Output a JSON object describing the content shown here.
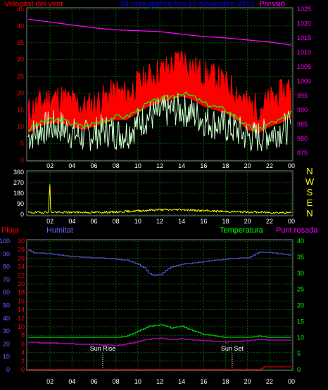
{
  "header": {
    "title": "24 hora gràfica fins 10 Novembre 2019",
    "left_label": "Velocitat del vent",
    "right_label": "Pressió"
  },
  "colors": {
    "wind": "#ff0000",
    "wind_avg": "#00ff00",
    "gust": "#ccffcc",
    "pressure": "#ff00ff",
    "direction": "#ffff00",
    "humidity": "#6666ff",
    "temperature": "#00ff00",
    "dewpoint": "#ff00ff",
    "rain": "#ff0000",
    "grid": "#006400",
    "frame": "#808080"
  },
  "chart_data": [
    {
      "type": "line",
      "title": "24 hora gràfica fins 10 Novembre 2019",
      "x_ticks": [
        "02",
        "04",
        "06",
        "08",
        "10",
        "12",
        "14",
        "16",
        "18",
        "20",
        "22",
        "00"
      ],
      "x_range_hours": [
        0,
        24
      ],
      "ylabel_left": "Velocitat del vent",
      "ylabel_right": "Pressió",
      "ylim_left": [
        0,
        45
      ],
      "ylim_right": [
        972.5,
        1025
      ],
      "y_ticks_left": [
        0,
        5,
        10,
        15,
        20,
        25,
        30,
        35,
        40,
        45
      ],
      "y_ticks_right": [
        975,
        980,
        985,
        990,
        995,
        1000,
        1005,
        1010,
        1015,
        1020,
        1025
      ],
      "grid": true,
      "series": [
        {
          "name": "Velocitat del vent",
          "color_key": "wind",
          "axis": "left",
          "x": [
            0,
            1,
            2,
            3,
            4,
            5,
            6,
            7,
            8,
            9,
            10,
            11,
            12,
            13,
            14,
            15,
            16,
            17,
            18,
            19,
            20,
            21,
            22,
            23,
            24
          ],
          "values": [
            12,
            14,
            16,
            16,
            15,
            13,
            14,
            16,
            18,
            17,
            20,
            22,
            24,
            25,
            28,
            25,
            23,
            22,
            20,
            18,
            14,
            13,
            15,
            17,
            20
          ]
        },
        {
          "name": "Mitjana",
          "color_key": "wind_avg",
          "axis": "left",
          "x": [
            0,
            1,
            2,
            3,
            4,
            5,
            6,
            7,
            8,
            9,
            10,
            11,
            12,
            13,
            14,
            15,
            16,
            17,
            18,
            19,
            20,
            21,
            22,
            23,
            24
          ],
          "values": [
            9,
            11,
            12,
            12,
            11,
            10,
            11,
            12,
            13,
            13,
            15,
            17,
            18,
            19,
            20,
            19,
            17,
            16,
            15,
            13,
            10,
            9,
            11,
            12,
            14
          ]
        },
        {
          "name": "Ràfega",
          "color_key": "gust",
          "axis": "left",
          "x": [
            0,
            1,
            2,
            3,
            4,
            5,
            6,
            7,
            8,
            9,
            10,
            11,
            12,
            13,
            14,
            15,
            16,
            17,
            18,
            19,
            20,
            21,
            22,
            23,
            24
          ],
          "values": [
            7,
            9,
            10,
            10,
            8,
            7,
            8,
            9,
            8,
            8,
            11,
            13,
            14,
            15,
            15,
            14,
            12,
            11,
            10,
            9,
            7,
            7,
            8,
            9,
            10
          ]
        },
        {
          "name": "Pressió",
          "color_key": "pressure",
          "axis": "right",
          "x": [
            0,
            2,
            4,
            6,
            8,
            10,
            12,
            14,
            16,
            18,
            20,
            22,
            24
          ],
          "values": [
            1021.5,
            1020.5,
            1019.5,
            1018.5,
            1017.8,
            1017.5,
            1017.2,
            1016.3,
            1015.5,
            1015,
            1014.3,
            1013.6,
            1012.5
          ]
        }
      ]
    },
    {
      "type": "line",
      "x_ticks": [
        "02",
        "04",
        "06",
        "08",
        "10",
        "12",
        "14",
        "16",
        "18",
        "20",
        "22",
        "00"
      ],
      "x_range_hours": [
        0,
        24
      ],
      "ylim": [
        0,
        360
      ],
      "y_ticks": [
        0,
        90,
        180,
        270,
        360
      ],
      "right_labels": [
        "N",
        "W",
        "S",
        "E",
        "N"
      ],
      "grid": true,
      "series": [
        {
          "name": "Direcció",
          "color_key": "direction",
          "x": [
            0,
            1,
            1.9,
            1.95,
            2.05,
            3,
            4,
            5,
            6,
            7,
            8,
            9,
            10,
            11,
            12,
            13,
            14,
            15,
            16,
            17,
            18,
            19,
            20,
            21,
            22,
            23,
            24
          ],
          "values": [
            15,
            16,
            20,
            360,
            20,
            15,
            18,
            17,
            16,
            18,
            20,
            25,
            30,
            35,
            40,
            38,
            42,
            35,
            30,
            28,
            25,
            22,
            20,
            18,
            16,
            15,
            14
          ]
        }
      ]
    },
    {
      "type": "line",
      "x_ticks": [
        "02",
        "04",
        "06",
        "08",
        "10",
        "12",
        "14",
        "16",
        "18",
        "20",
        "22",
        "00"
      ],
      "x_range_hours": [
        0,
        24
      ],
      "left_label": "Pluja",
      "second_label": "Humitat",
      "temperature_label": "Temperatura",
      "dewpoint_label": "Punt rosada",
      "ylim_rain": [
        0,
        30
      ],
      "y_ticks_rain": [
        0,
        2,
        4,
        6,
        8,
        10,
        12,
        14,
        16,
        18,
        20,
        22,
        24,
        26,
        28,
        30
      ],
      "ylim_humidity": [
        0,
        100
      ],
      "y_ticks_humidity": [
        0,
        10,
        20,
        30,
        40,
        50,
        60,
        70,
        80,
        90,
        100
      ],
      "ylim_temperature": [
        0,
        40
      ],
      "y_ticks_temperature": [
        0,
        5,
        10,
        15,
        20,
        25,
        30,
        35,
        40
      ],
      "annotations": [
        {
          "label": "Sun Rise",
          "hour": 6.8
        },
        {
          "label": "Sun Set",
          "hour": 18.6
        }
      ],
      "grid": true,
      "series": [
        {
          "name": "Humitat",
          "color_key": "humidity",
          "scale": "humidity",
          "x": [
            0,
            0.4,
            2,
            4,
            6,
            8,
            9,
            10,
            10.5,
            11,
            11.5,
            12,
            12.5,
            13,
            14,
            16,
            18,
            20,
            21,
            22,
            24
          ],
          "values": [
            93,
            91,
            90,
            88,
            87,
            86,
            85,
            82,
            79,
            75,
            73,
            74,
            77,
            80,
            82,
            84,
            86,
            87,
            91,
            91,
            89
          ]
        },
        {
          "name": "Temperatura",
          "color_key": "temperature",
          "scale": "temperature",
          "x": [
            0,
            2,
            4,
            6,
            8,
            9,
            10,
            11,
            12,
            13,
            14,
            15,
            16,
            17,
            18,
            19,
            20,
            21,
            22,
            23,
            24
          ],
          "values": [
            10,
            10,
            10,
            10,
            10,
            10.5,
            12,
            13.5,
            14,
            13,
            13.5,
            12,
            11,
            10.5,
            10,
            10,
            10,
            10.5,
            10,
            10,
            10
          ]
        },
        {
          "name": "Punt rosada",
          "color_key": "dewpoint",
          "scale": "temperature",
          "x": [
            0,
            2,
            4,
            6,
            8,
            9,
            10,
            11,
            12,
            13,
            14,
            15,
            16,
            17,
            18,
            19,
            20,
            21,
            22,
            23,
            24
          ],
          "values": [
            8.5,
            8.3,
            8.0,
            7.8,
            7.5,
            8,
            8.8,
            9.5,
            9.8,
            9.4,
            9.6,
            9.2,
            9,
            8.8,
            8.6,
            8.8,
            9,
            9.4,
            9.2,
            9.2,
            9.2
          ]
        },
        {
          "name": "Pluja",
          "color_key": "rain",
          "scale": "rain",
          "x": [
            0,
            21,
            21.5,
            24
          ],
          "values": [
            0,
            0,
            0.6,
            0.6
          ]
        }
      ]
    }
  ]
}
